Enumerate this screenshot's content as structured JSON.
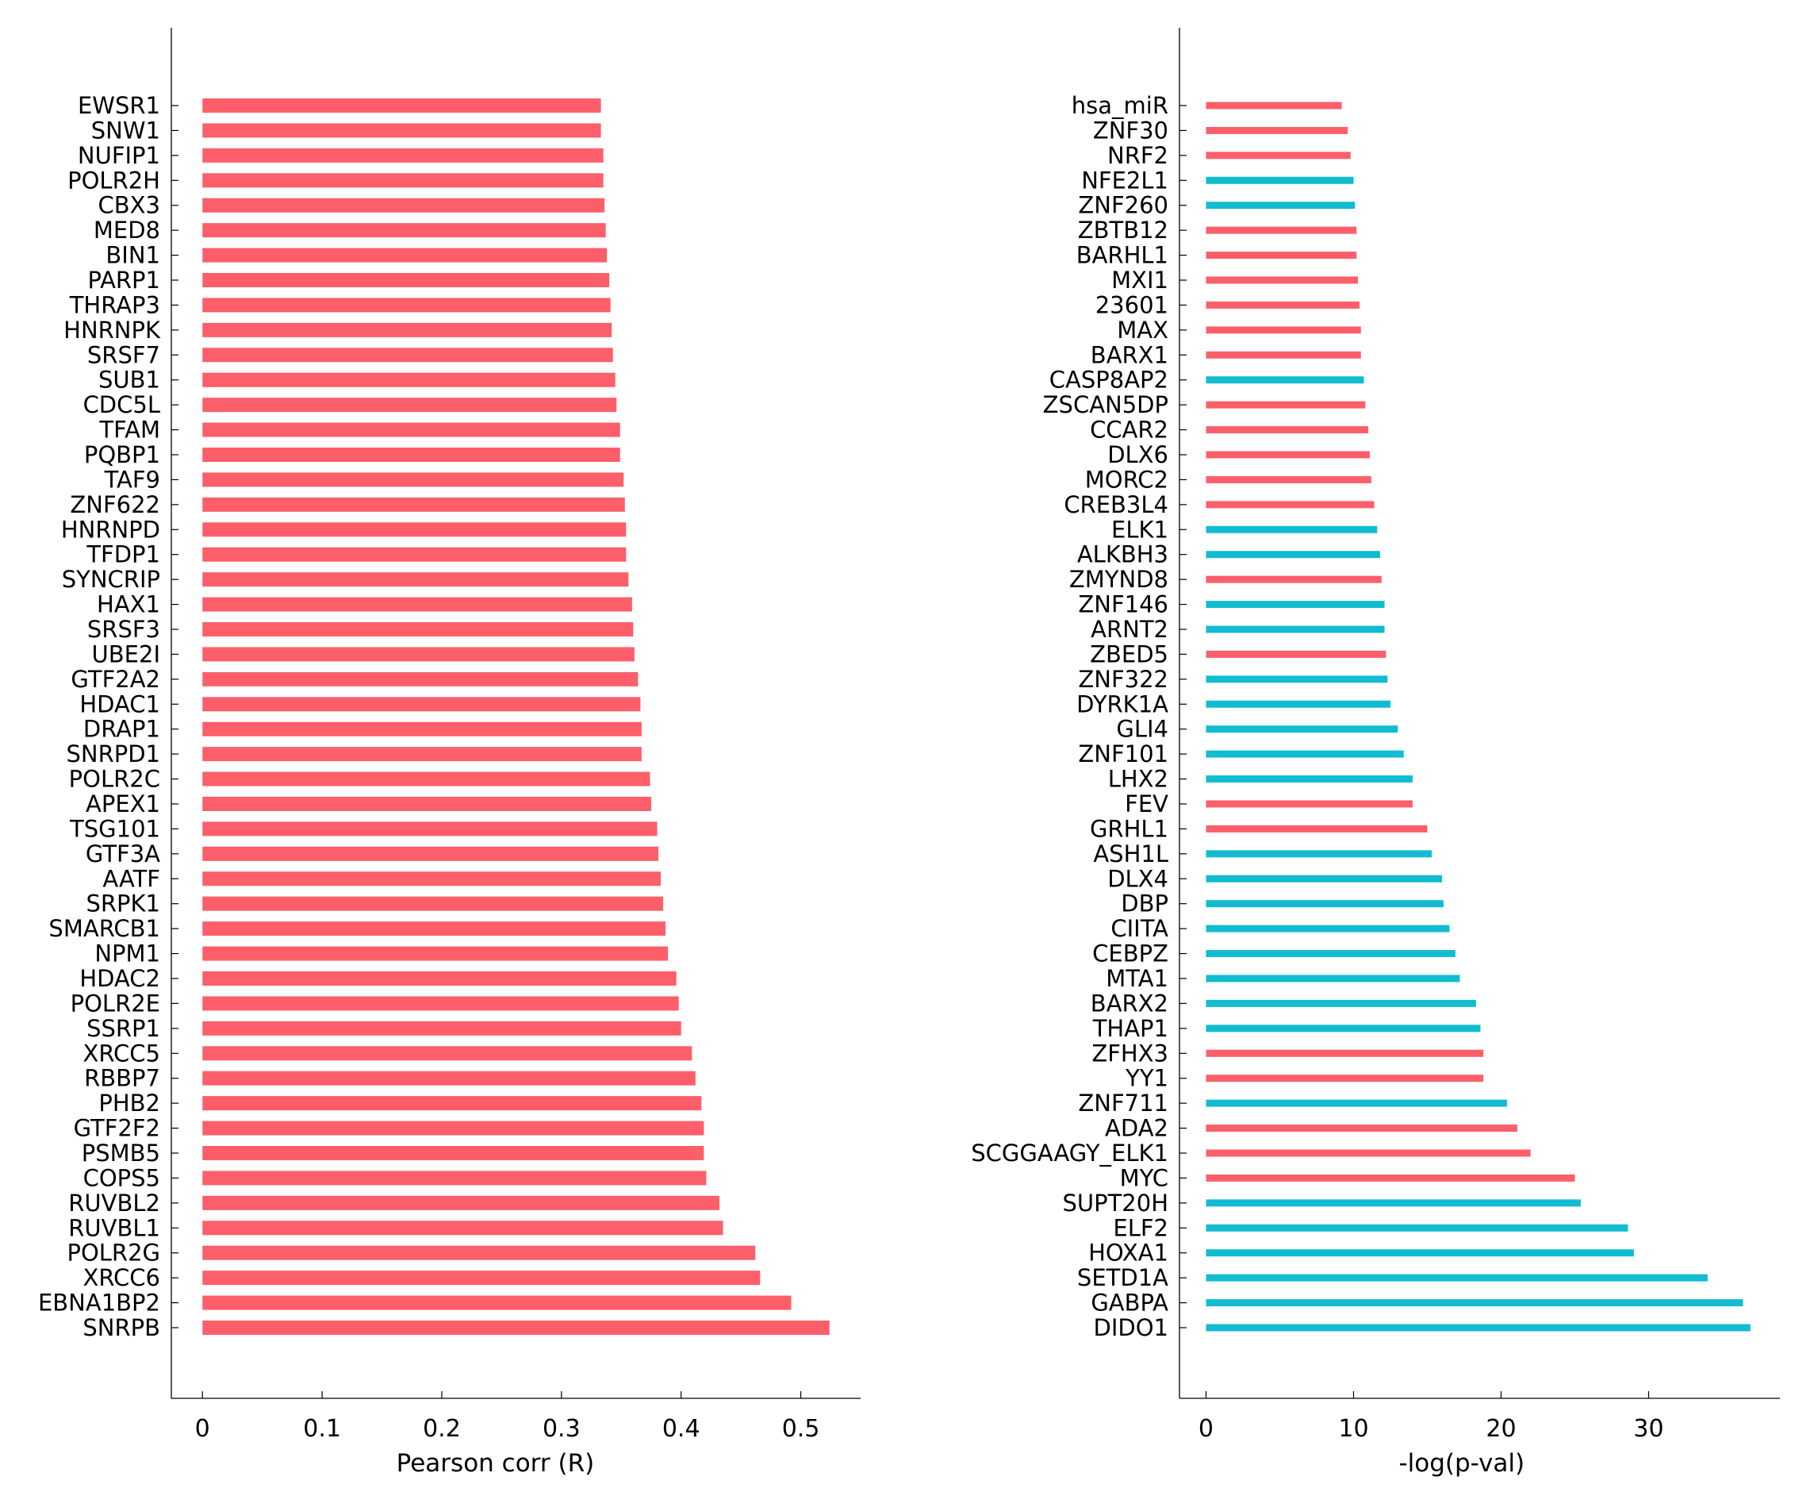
{
  "colors": {
    "positive": "#fc5f6a",
    "negative": "#12bcd0",
    "axis": "#000000"
  },
  "chart_data": [
    {
      "type": "bar",
      "orientation": "horizontal",
      "title": "",
      "xlabel": "Pearson corr (R)",
      "ylabel": "",
      "xlim": [
        -0.026,
        0.55
      ],
      "ticks": [
        0,
        0.1,
        0.2,
        0.3,
        0.4,
        0.5
      ],
      "tick_labels": [
        "0",
        "0.1",
        "0.2",
        "0.3",
        "0.4",
        "0.5"
      ],
      "grid": false,
      "categories": [
        "EWSR1",
        "SNW1",
        "NUFIP1",
        "POLR2H",
        "CBX3",
        "MED8",
        "BIN1",
        "PARP1",
        "THRAP3",
        "HNRNPK",
        "SRSF7",
        "SUB1",
        "CDC5L",
        "TFAM",
        "PQBP1",
        "TAF9",
        "ZNF622",
        "HNRNPD",
        "TFDP1",
        "SYNCRIP",
        "HAX1",
        "SRSF3",
        "UBE2I",
        "GTF2A2",
        "HDAC1",
        "DRAP1",
        "SNRPD1",
        "POLR2C",
        "APEX1",
        "TSG101",
        "GTF3A",
        "AATF",
        "SRPK1",
        "SMARCB1",
        "NPM1",
        "HDAC2",
        "POLR2E",
        "SSRP1",
        "XRCC5",
        "RBBP7",
        "PHB2",
        "GTF2F2",
        "PSMB5",
        "COPS5",
        "RUVBL2",
        "RUVBL1",
        "POLR2G",
        "XRCC6",
        "EBNA1BP2",
        "SNRPB"
      ],
      "values": [
        0.333,
        0.333,
        0.335,
        0.335,
        0.336,
        0.337,
        0.338,
        0.34,
        0.341,
        0.342,
        0.343,
        0.345,
        0.346,
        0.349,
        0.349,
        0.352,
        0.353,
        0.354,
        0.354,
        0.356,
        0.359,
        0.36,
        0.361,
        0.364,
        0.366,
        0.367,
        0.367,
        0.374,
        0.375,
        0.38,
        0.381,
        0.383,
        0.385,
        0.387,
        0.389,
        0.396,
        0.398,
        0.4,
        0.409,
        0.412,
        0.417,
        0.419,
        0.419,
        0.421,
        0.432,
        0.435,
        0.462,
        0.466,
        0.492,
        0.524
      ],
      "bar_colors": [
        "positive",
        "positive",
        "positive",
        "positive",
        "positive",
        "positive",
        "positive",
        "positive",
        "positive",
        "positive",
        "positive",
        "positive",
        "positive",
        "positive",
        "positive",
        "positive",
        "positive",
        "positive",
        "positive",
        "positive",
        "positive",
        "positive",
        "positive",
        "positive",
        "positive",
        "positive",
        "positive",
        "positive",
        "positive",
        "positive",
        "positive",
        "positive",
        "positive",
        "positive",
        "positive",
        "positive",
        "positive",
        "positive",
        "positive",
        "positive",
        "positive",
        "positive",
        "positive",
        "positive",
        "positive",
        "positive",
        "positive",
        "positive",
        "positive",
        "positive"
      ]
    },
    {
      "type": "bar",
      "orientation": "horizontal",
      "title": "",
      "xlabel": "-log(p-val)",
      "ylabel": "",
      "xlim": [
        -1.8,
        38.9
      ],
      "ticks": [
        0,
        10,
        20,
        30
      ],
      "tick_labels": [
        "0",
        "10",
        "20",
        "30"
      ],
      "grid": false,
      "categories": [
        "hsa_miR",
        "ZNF30",
        "NRF2",
        "NFE2L1",
        "ZNF260",
        "ZBTB12",
        "BARHL1",
        "MXI1",
        "23601",
        "MAX",
        "BARX1",
        "CASP8AP2",
        "ZSCAN5DP",
        "CCAR2",
        "DLX6",
        "MORC2",
        "CREB3L4",
        "ELK1",
        "ALKBH3",
        "ZMYND8",
        "ZNF146",
        "ARNT2",
        "ZBED5",
        "ZNF322",
        "DYRK1A",
        "GLI4",
        "ZNF101",
        "LHX2",
        "FEV",
        "GRHL1",
        "ASH1L",
        "DLX4",
        "DBP",
        "CIITA",
        "CEBPZ",
        "MTA1",
        "BARX2",
        "THAP1",
        "ZFHX3",
        "YY1",
        "ZNF711",
        "ADA2",
        "SCGGAAGY_ELK1",
        "MYC",
        "SUPT20H",
        "ELF2",
        "HOXA1",
        "SETD1A",
        "GABPA",
        "DIDO1"
      ],
      "values": [
        9.2,
        9.6,
        9.8,
        10.0,
        10.1,
        10.2,
        10.2,
        10.3,
        10.4,
        10.5,
        10.5,
        10.7,
        10.8,
        11.0,
        11.1,
        11.2,
        11.4,
        11.6,
        11.8,
        11.9,
        12.1,
        12.1,
        12.2,
        12.3,
        12.5,
        13.0,
        13.4,
        14.0,
        14.0,
        15.0,
        15.3,
        16.0,
        16.1,
        16.5,
        16.9,
        17.2,
        18.3,
        18.6,
        18.8,
        18.8,
        20.4,
        21.1,
        22.0,
        25.0,
        25.4,
        28.6,
        29.0,
        34.0,
        36.4,
        36.9
      ],
      "bar_colors": [
        "positive",
        "positive",
        "positive",
        "negative",
        "negative",
        "positive",
        "positive",
        "positive",
        "positive",
        "positive",
        "positive",
        "negative",
        "positive",
        "positive",
        "positive",
        "positive",
        "positive",
        "negative",
        "negative",
        "positive",
        "negative",
        "negative",
        "positive",
        "negative",
        "negative",
        "negative",
        "negative",
        "negative",
        "positive",
        "positive",
        "negative",
        "negative",
        "negative",
        "negative",
        "negative",
        "negative",
        "negative",
        "negative",
        "positive",
        "positive",
        "negative",
        "positive",
        "positive",
        "positive",
        "negative",
        "negative",
        "negative",
        "negative",
        "negative",
        "negative"
      ]
    }
  ]
}
